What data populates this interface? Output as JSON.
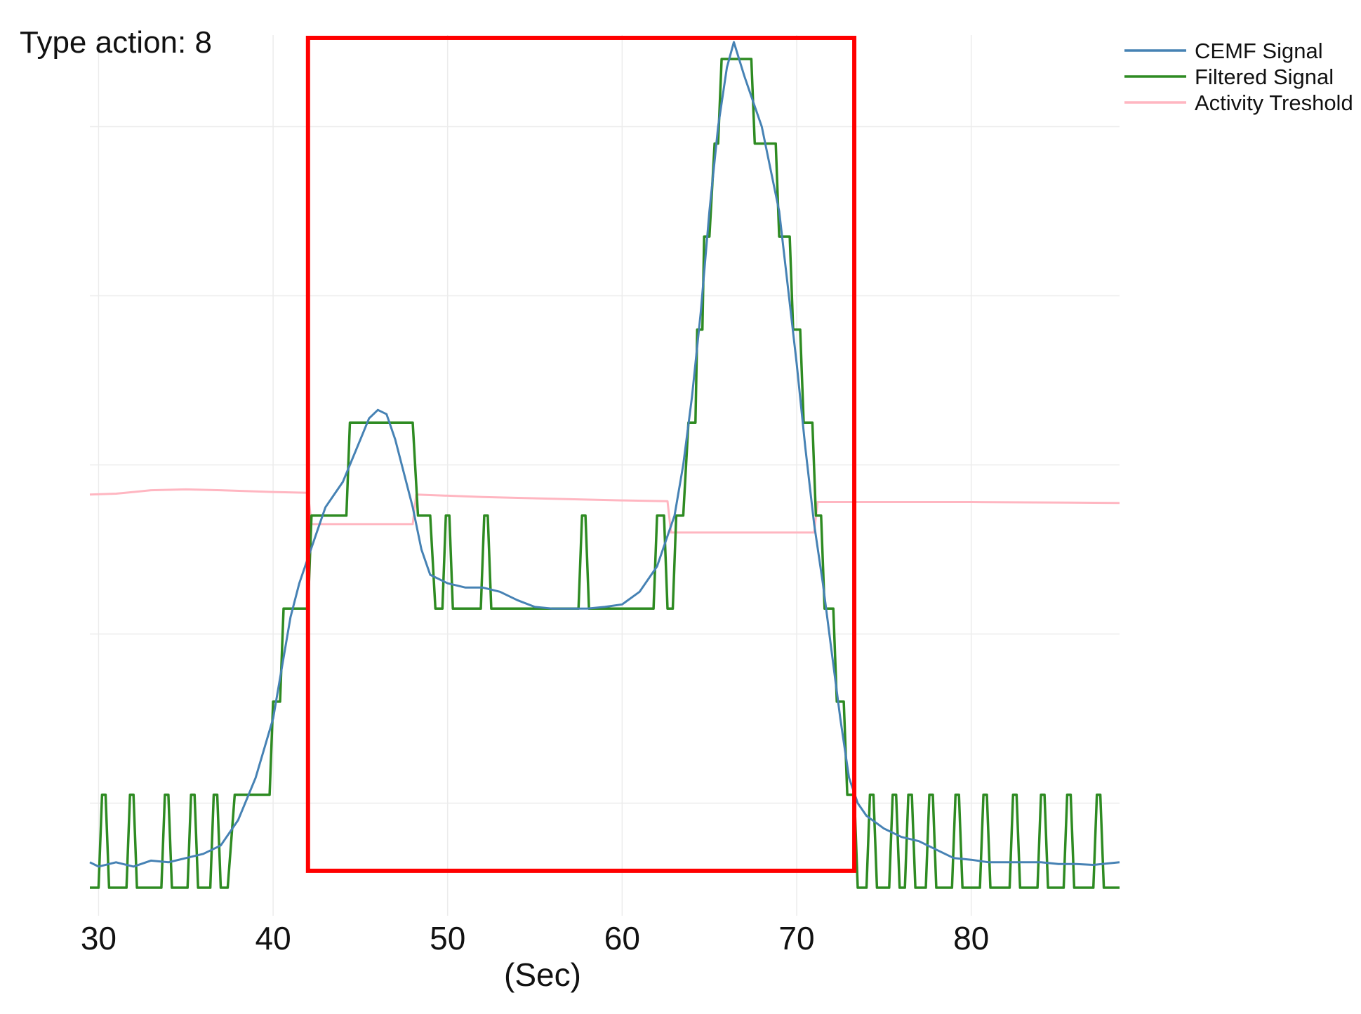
{
  "chart_data": {
    "type": "line",
    "title": "Type action: 8",
    "xlabel": "(Sec)",
    "ylabel": "",
    "xlim": [
      29.5,
      88.5
    ],
    "ylim": [
      0,
      1
    ],
    "x_ticks": [
      30,
      40,
      50,
      60,
      70,
      80
    ],
    "y_tick_labels_shown": false,
    "grid": true,
    "legend_position": "top-right",
    "series": [
      {
        "name": "CEMF Signal",
        "color": "#4682b4",
        "points": [
          [
            29.5,
            0.03
          ],
          [
            30,
            0.025
          ],
          [
            31,
            0.03
          ],
          [
            32,
            0.025
          ],
          [
            33,
            0.032
          ],
          [
            34,
            0.03
          ],
          [
            35,
            0.035
          ],
          [
            36,
            0.04
          ],
          [
            37,
            0.05
          ],
          [
            38,
            0.08
          ],
          [
            39,
            0.13
          ],
          [
            40,
            0.2
          ],
          [
            40.5,
            0.26
          ],
          [
            41,
            0.32
          ],
          [
            41.5,
            0.36
          ],
          [
            42,
            0.39
          ],
          [
            42.5,
            0.42
          ],
          [
            43,
            0.45
          ],
          [
            44,
            0.48
          ],
          [
            45,
            0.53
          ],
          [
            45.5,
            0.555
          ],
          [
            46,
            0.565
          ],
          [
            46.5,
            0.56
          ],
          [
            47,
            0.53
          ],
          [
            48,
            0.45
          ],
          [
            48.5,
            0.4
          ],
          [
            49,
            0.37
          ],
          [
            50,
            0.36
          ],
          [
            51,
            0.355
          ],
          [
            52,
            0.355
          ],
          [
            53,
            0.35
          ],
          [
            54,
            0.34
          ],
          [
            55,
            0.332
          ],
          [
            56,
            0.33
          ],
          [
            57,
            0.33
          ],
          [
            58,
            0.33
          ],
          [
            59,
            0.332
          ],
          [
            60,
            0.335
          ],
          [
            61,
            0.35
          ],
          [
            62,
            0.38
          ],
          [
            62.5,
            0.41
          ],
          [
            63,
            0.44
          ],
          [
            63.5,
            0.5
          ],
          [
            64,
            0.58
          ],
          [
            64.5,
            0.68
          ],
          [
            65,
            0.8
          ],
          [
            65.5,
            0.9
          ],
          [
            66,
            0.97
          ],
          [
            66.4,
            1.0
          ],
          [
            67,
            0.96
          ],
          [
            67.5,
            0.93
          ],
          [
            68,
            0.9
          ],
          [
            69,
            0.8
          ],
          [
            70,
            0.62
          ],
          [
            70.5,
            0.52
          ],
          [
            71,
            0.43
          ],
          [
            71.5,
            0.36
          ],
          [
            72,
            0.28
          ],
          [
            72.5,
            0.2
          ],
          [
            73,
            0.13
          ],
          [
            73.5,
            0.1
          ],
          [
            74,
            0.085
          ],
          [
            75,
            0.07
          ],
          [
            76,
            0.06
          ],
          [
            77,
            0.055
          ],
          [
            78,
            0.045
          ],
          [
            79,
            0.035
          ],
          [
            80,
            0.033
          ],
          [
            81,
            0.03
          ],
          [
            82,
            0.03
          ],
          [
            83,
            0.03
          ],
          [
            84,
            0.03
          ],
          [
            85,
            0.028
          ],
          [
            86,
            0.028
          ],
          [
            87,
            0.027
          ],
          [
            88.5,
            0.03
          ]
        ]
      },
      {
        "name": "Filtered Signal",
        "color": "#2e8b22",
        "points": [
          [
            29.5,
            0.0
          ],
          [
            30,
            0.0
          ],
          [
            30.2,
            0.11
          ],
          [
            30.4,
            0.11
          ],
          [
            30.6,
            0.0
          ],
          [
            31.6,
            0.0
          ],
          [
            31.8,
            0.11
          ],
          [
            32,
            0.11
          ],
          [
            32.2,
            0.0
          ],
          [
            33.6,
            0.0
          ],
          [
            33.8,
            0.11
          ],
          [
            34,
            0.11
          ],
          [
            34.2,
            0.0
          ],
          [
            35.1,
            0.0
          ],
          [
            35.3,
            0.11
          ],
          [
            35.5,
            0.11
          ],
          [
            35.7,
            0.0
          ],
          [
            36.4,
            0.0
          ],
          [
            36.6,
            0.11
          ],
          [
            36.8,
            0.11
          ],
          [
            37,
            0.0
          ],
          [
            37.4,
            0.0
          ],
          [
            37.8,
            0.11
          ],
          [
            39.8,
            0.11
          ],
          [
            40,
            0.22
          ],
          [
            40.4,
            0.22
          ],
          [
            40.6,
            0.33
          ],
          [
            42,
            0.33
          ],
          [
            42.2,
            0.44
          ],
          [
            44.2,
            0.44
          ],
          [
            44.4,
            0.55
          ],
          [
            48,
            0.55
          ],
          [
            48.3,
            0.44
          ],
          [
            49,
            0.44
          ],
          [
            49.3,
            0.33
          ],
          [
            49.7,
            0.33
          ],
          [
            49.9,
            0.44
          ],
          [
            50.1,
            0.44
          ],
          [
            50.3,
            0.33
          ],
          [
            51.9,
            0.33
          ],
          [
            52.1,
            0.44
          ],
          [
            52.3,
            0.44
          ],
          [
            52.5,
            0.33
          ],
          [
            57.5,
            0.33
          ],
          [
            57.7,
            0.44
          ],
          [
            57.9,
            0.44
          ],
          [
            58.1,
            0.33
          ],
          [
            61.8,
            0.33
          ],
          [
            62,
            0.44
          ],
          [
            62.4,
            0.44
          ],
          [
            62.6,
            0.33
          ],
          [
            62.9,
            0.33
          ],
          [
            63.1,
            0.44
          ],
          [
            63.5,
            0.44
          ],
          [
            63.8,
            0.55
          ],
          [
            64.2,
            0.55
          ],
          [
            64.3,
            0.66
          ],
          [
            64.6,
            0.66
          ],
          [
            64.7,
            0.77
          ],
          [
            65,
            0.77
          ],
          [
            65.3,
            0.88
          ],
          [
            65.5,
            0.88
          ],
          [
            65.7,
            0.98
          ],
          [
            67.4,
            0.98
          ],
          [
            67.6,
            0.88
          ],
          [
            68.8,
            0.88
          ],
          [
            69,
            0.77
          ],
          [
            69.6,
            0.77
          ],
          [
            69.8,
            0.66
          ],
          [
            70.2,
            0.66
          ],
          [
            70.4,
            0.55
          ],
          [
            70.9,
            0.55
          ],
          [
            71.1,
            0.44
          ],
          [
            71.4,
            0.44
          ],
          [
            71.6,
            0.33
          ],
          [
            72.1,
            0.33
          ],
          [
            72.3,
            0.22
          ],
          [
            72.7,
            0.22
          ],
          [
            72.9,
            0.11
          ],
          [
            73.3,
            0.11
          ],
          [
            73.5,
            0.0
          ],
          [
            74,
            0.0
          ],
          [
            74.2,
            0.11
          ],
          [
            74.4,
            0.11
          ],
          [
            74.6,
            0.0
          ],
          [
            75.3,
            0.0
          ],
          [
            75.5,
            0.11
          ],
          [
            75.7,
            0.11
          ],
          [
            75.9,
            0.0
          ],
          [
            76.2,
            0.0
          ],
          [
            76.4,
            0.11
          ],
          [
            76.6,
            0.11
          ],
          [
            76.8,
            0.0
          ],
          [
            77.4,
            0.0
          ],
          [
            77.6,
            0.11
          ],
          [
            77.8,
            0.11
          ],
          [
            78,
            0.0
          ],
          [
            78.9,
            0.0
          ],
          [
            79.1,
            0.11
          ],
          [
            79.3,
            0.11
          ],
          [
            79.5,
            0.0
          ],
          [
            80.5,
            0.0
          ],
          [
            80.7,
            0.11
          ],
          [
            80.9,
            0.11
          ],
          [
            81.1,
            0.0
          ],
          [
            82.2,
            0.0
          ],
          [
            82.4,
            0.11
          ],
          [
            82.6,
            0.11
          ],
          [
            82.8,
            0.0
          ],
          [
            83.8,
            0.0
          ],
          [
            84,
            0.11
          ],
          [
            84.2,
            0.11
          ],
          [
            84.4,
            0.0
          ],
          [
            85.3,
            0.0
          ],
          [
            85.5,
            0.11
          ],
          [
            85.7,
            0.11
          ],
          [
            85.9,
            0.0
          ],
          [
            87,
            0.0
          ],
          [
            87.2,
            0.11
          ],
          [
            87.4,
            0.11
          ],
          [
            87.6,
            0.0
          ],
          [
            88.5,
            0.0
          ]
        ]
      },
      {
        "name": "Activity Treshold",
        "color": "#ffb6c1",
        "points": [
          [
            29.5,
            0.465
          ],
          [
            31,
            0.466
          ],
          [
            32,
            0.468
          ],
          [
            33,
            0.47
          ],
          [
            35,
            0.471
          ],
          [
            37,
            0.47
          ],
          [
            40,
            0.468
          ],
          [
            42,
            0.467
          ],
          [
            42.2,
            0.43
          ],
          [
            48,
            0.43
          ],
          [
            48.2,
            0.465
          ],
          [
            52,
            0.462
          ],
          [
            56,
            0.46
          ],
          [
            60,
            0.458
          ],
          [
            62.6,
            0.457
          ],
          [
            62.8,
            0.42
          ],
          [
            71,
            0.42
          ],
          [
            71.2,
            0.456
          ],
          [
            80,
            0.456
          ],
          [
            88.5,
            0.455
          ]
        ]
      }
    ],
    "annotations": [
      {
        "type": "rectangle",
        "color": "#ff0000",
        "x_range": [
          42,
          73.3
        ],
        "y_range": [
          0.02,
          1.005
        ]
      }
    ]
  }
}
